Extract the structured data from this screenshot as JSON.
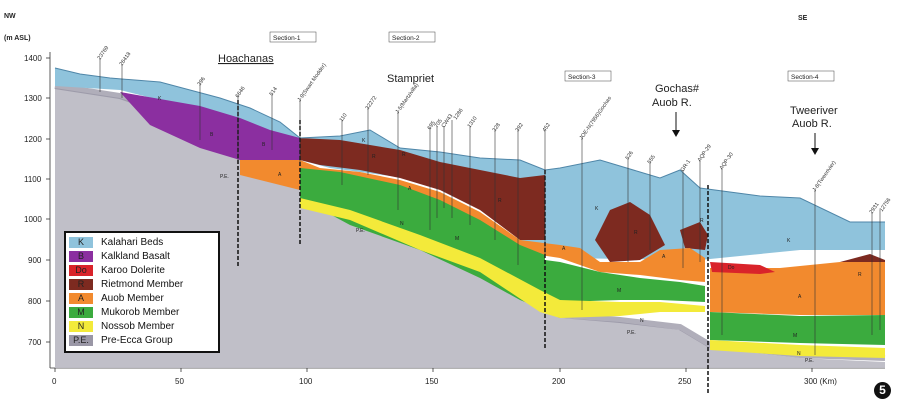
{
  "header": {
    "left_direction": "NW",
    "right_direction": "SE",
    "y_unit": "(m  ASL)"
  },
  "y_axis": {
    "ticks": [
      "1400",
      "1300",
      "1200",
      "1100",
      "1000",
      "900",
      "800",
      "700"
    ]
  },
  "x_axis": {
    "ticks": [
      "0",
      "50",
      "100",
      "150",
      "200",
      "250",
      "300 (Km)"
    ]
  },
  "sections": [
    "Section-1",
    "Section-2",
    "Section-3",
    "Section-4"
  ],
  "places": {
    "hoachanas": "Hoachanas",
    "stampriet": "Stampriet",
    "gochas": "Gochas#",
    "auob1": "Auob R.",
    "tweeriver": "Tweeriver",
    "auob2": "Auob R."
  },
  "wells": [
    "23769",
    "26418",
    "396",
    "6646",
    "514",
    "J-9(Swart Modder)",
    "110",
    "32272",
    "J-5(Martzivilla)",
    "695",
    "705",
    "CW43",
    "1286",
    "1310",
    "328",
    "392",
    "452",
    "JOE-N(7956)Gochas",
    "526",
    "555",
    "GR-1",
    "AQP-29",
    "AQP-30",
    "J-8(Tweerivier)",
    "2931",
    "12756"
  ],
  "unit_labels": {
    "K": "K",
    "B": "B",
    "R": "R",
    "A": "A",
    "M": "M",
    "N": "N",
    "PE": "P.E.",
    "Do": "Do"
  },
  "legend": [
    {
      "code": "K",
      "label": "Kalahari Beds",
      "color": "#8fc3dc"
    },
    {
      "code": "B",
      "label": "Kalkland Basalt",
      "color": "#8b2fa0"
    },
    {
      "code": "Do",
      "label": "Karoo Dolerite",
      "color": "#d9232a"
    },
    {
      "code": "R",
      "label": "Rietmond Member",
      "color": "#7d2a20"
    },
    {
      "code": "A",
      "label": "Auob Member",
      "color": "#f28a2e"
    },
    {
      "code": "M",
      "label": "Mukorob Member",
      "color": "#3bab3e"
    },
    {
      "code": "N",
      "label": "Nossob Member",
      "color": "#f3ea3a"
    },
    {
      "code": "P.E.",
      "label": "Pre-Ecca Group",
      "color": "#9a97a6"
    }
  ],
  "figure_number": "5"
}
